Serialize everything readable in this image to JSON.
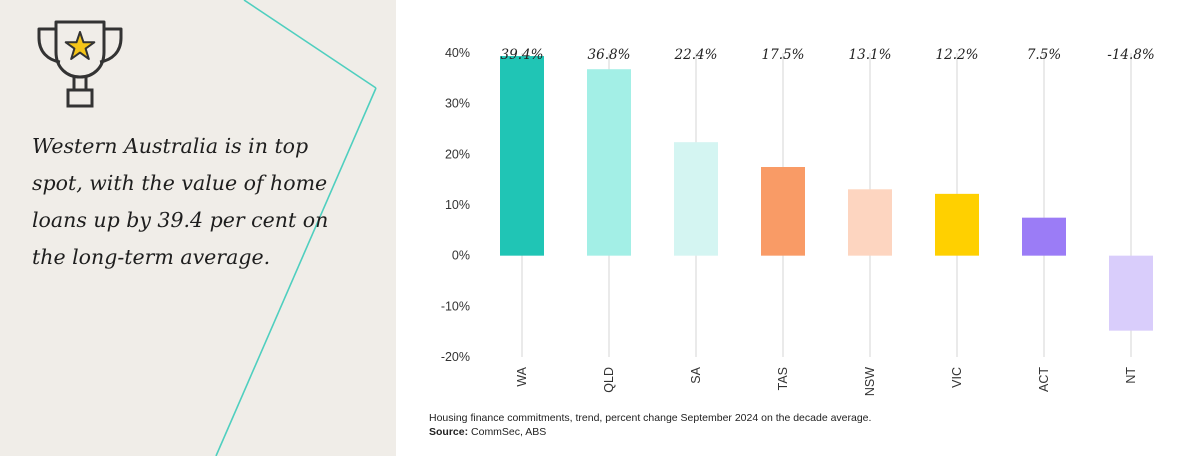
{
  "headline": "Western Australia is in top spot, with the value of home loans up by 39.4 per cent on the long-term average.",
  "icons": {
    "trophy": "trophy-star-icon"
  },
  "colors": {
    "panel_bg": "#f0ede8",
    "accent_line": "#4fcfbf",
    "trophy_star": "#f5c518"
  },
  "chart_data": {
    "type": "bar",
    "categories": [
      "WA",
      "QLD",
      "SA",
      "TAS",
      "NSW",
      "VIC",
      "ACT",
      "NT"
    ],
    "values": [
      39.4,
      36.8,
      22.4,
      17.5,
      13.1,
      12.2,
      7.5,
      -14.8
    ],
    "value_labels": [
      "39.4%",
      "36.8%",
      "22.4%",
      "17.5%",
      "13.1%",
      "12.2%",
      "7.5%",
      "-14.8%"
    ],
    "bar_colors": [
      "#20c5b5",
      "#a3efe6",
      "#d4f5f2",
      "#f99b66",
      "#fdd5c0",
      "#ffd000",
      "#9b7cf6",
      "#d9cdfb"
    ],
    "yticks": [
      40,
      30,
      20,
      10,
      0,
      -10,
      -20
    ],
    "ytick_labels": [
      "40%",
      "30%",
      "20%",
      "10%",
      "0%",
      "-10%",
      "-20%"
    ],
    "ylim": [
      -20,
      40
    ],
    "grid": "vertical category lines",
    "legend": "none",
    "caption": "Housing finance commitments, trend, percent change September 2024 on the decade average.",
    "source_label": "Source:",
    "source_value": "CommSec, ABS"
  }
}
